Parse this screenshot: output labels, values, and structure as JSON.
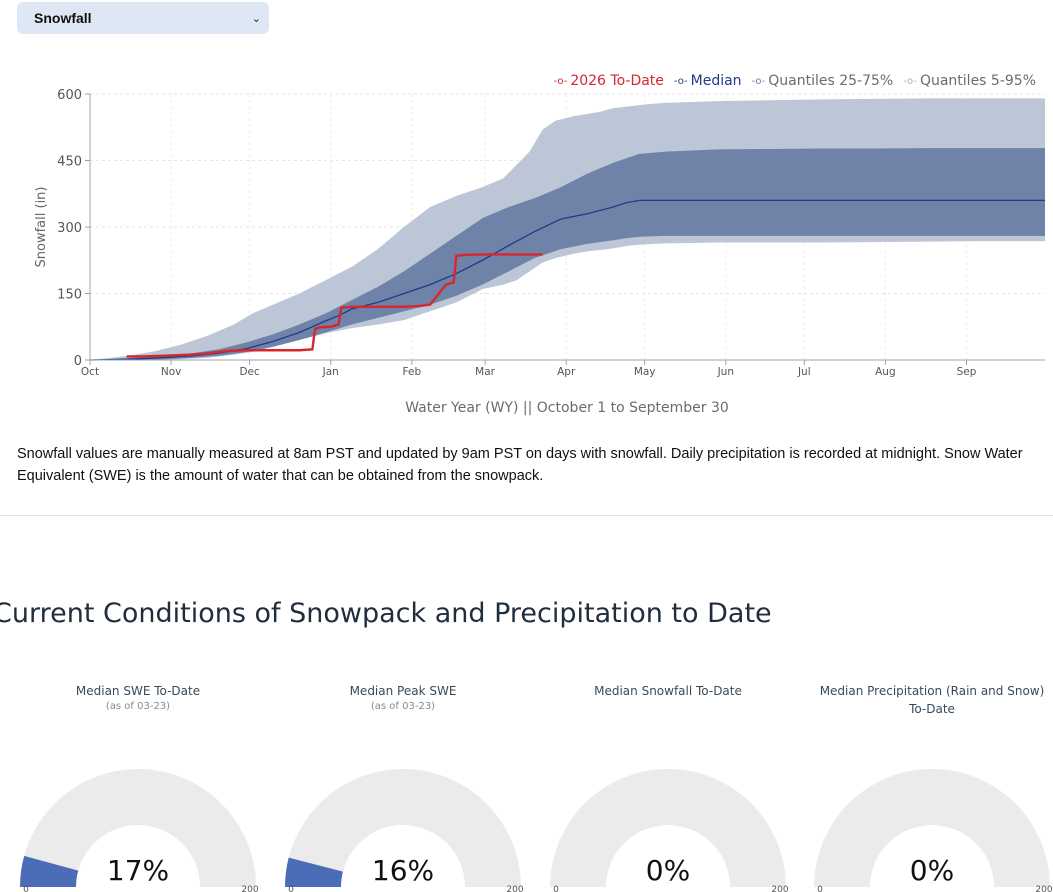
{
  "selector": {
    "value": "Snowfall",
    "icon": "chevron-down-icon"
  },
  "legend": [
    {
      "label": "2026 To-Date",
      "color": "#d7262c"
    },
    {
      "label": "Median",
      "color": "#1f3b8a"
    },
    {
      "label": "Quantiles 25-75%",
      "color": "#6b7fa3"
    },
    {
      "label": "Quantiles 5-95%",
      "color": "#a8b4c8"
    }
  ],
  "chart_data": {
    "type": "area",
    "title": "",
    "ylabel": "Snowfall (in)",
    "xlabel": "Water Year (WY) || October 1 to September 30",
    "ylim": [
      0,
      600
    ],
    "yticks": [
      0,
      150,
      300,
      450,
      600
    ],
    "x_unit": "day of water year",
    "x_range": [
      0,
      365
    ],
    "month_ticks": [
      {
        "label": "Oct",
        "day": 0
      },
      {
        "label": "Nov",
        "day": 31
      },
      {
        "label": "Dec",
        "day": 61
      },
      {
        "label": "Jan",
        "day": 92
      },
      {
        "label": "Feb",
        "day": 123
      },
      {
        "label": "Mar",
        "day": 151
      },
      {
        "label": "Apr",
        "day": 182
      },
      {
        "label": "May",
        "day": 212
      },
      {
        "label": "Jun",
        "day": 243
      },
      {
        "label": "Jul",
        "day": 273
      },
      {
        "label": "Aug",
        "day": 304
      },
      {
        "label": "Sep",
        "day": 335
      }
    ],
    "series": [
      {
        "name": "Quantiles 5-95%",
        "x": [
          0,
          8,
          15,
          25,
          35,
          45,
          55,
          62,
          70,
          80,
          90,
          100,
          110,
          120,
          130,
          140,
          145,
          150,
          158,
          163,
          168,
          173,
          178,
          185,
          190,
          195,
          198,
          200,
          203,
          206,
          210,
          215,
          220,
          230,
          240,
          260,
          280,
          300,
          320,
          340,
          365
        ],
        "upper": [
          0,
          5,
          10,
          20,
          35,
          55,
          80,
          105,
          125,
          150,
          180,
          210,
          250,
          300,
          345,
          370,
          380,
          390,
          410,
          440,
          470,
          520,
          540,
          550,
          555,
          560,
          565,
          568,
          570,
          572,
          575,
          578,
          580,
          582,
          584,
          586,
          588,
          589,
          590,
          590,
          590
        ],
        "lower": [
          0,
          0,
          0,
          0,
          2,
          5,
          12,
          18,
          30,
          45,
          60,
          72,
          80,
          90,
          110,
          130,
          145,
          160,
          170,
          180,
          200,
          220,
          230,
          240,
          245,
          248,
          250,
          252,
          255,
          258,
          260,
          262,
          263,
          264,
          265,
          265,
          265,
          266,
          267,
          268,
          268
        ]
      },
      {
        "name": "Quantiles 25-75%",
        "x": [
          0,
          10,
          20,
          30,
          40,
          50,
          60,
          70,
          80,
          90,
          100,
          110,
          120,
          130,
          140,
          150,
          160,
          170,
          180,
          190,
          200,
          205,
          210,
          220,
          240,
          260,
          280,
          300,
          320,
          340,
          365
        ],
        "upper": [
          0,
          3,
          6,
          10,
          16,
          25,
          40,
          58,
          80,
          105,
          135,
          165,
          200,
          240,
          280,
          320,
          345,
          365,
          390,
          420,
          445,
          455,
          465,
          470,
          475,
          476,
          477,
          477,
          478,
          478,
          478
        ],
        "lower": [
          0,
          0,
          0,
          2,
          5,
          10,
          18,
          30,
          45,
          62,
          80,
          95,
          110,
          125,
          145,
          170,
          200,
          230,
          250,
          262,
          270,
          275,
          278,
          280,
          280,
          280,
          280,
          280,
          280,
          280,
          280
        ]
      },
      {
        "name": "Median",
        "x": [
          0,
          10,
          20,
          30,
          40,
          50,
          60,
          70,
          80,
          90,
          95,
          100,
          110,
          120,
          130,
          140,
          150,
          160,
          170,
          180,
          190,
          200,
          205,
          210,
          220,
          240,
          260,
          280,
          300,
          320,
          340,
          365
        ],
        "y": [
          0,
          1,
          3,
          6,
          10,
          16,
          26,
          42,
          62,
          88,
          100,
          115,
          130,
          150,
          170,
          195,
          225,
          258,
          290,
          318,
          330,
          345,
          355,
          360,
          360,
          360,
          360,
          360,
          360,
          360,
          360,
          360
        ]
      },
      {
        "name": "2026 To-Date",
        "x": [
          14,
          20,
          30,
          38,
          45,
          52,
          58,
          65,
          72,
          80,
          85,
          86,
          88,
          92,
          95,
          96,
          100,
          110,
          120,
          126,
          130,
          136,
          139,
          140,
          143,
          150,
          158,
          166,
          173
        ],
        "y": [
          8,
          8,
          10,
          12,
          15,
          20,
          22,
          22,
          22,
          22,
          24,
          70,
          74,
          75,
          80,
          118,
          120,
          120,
          120,
          122,
          125,
          170,
          175,
          235,
          237,
          238,
          238,
          238,
          238
        ]
      }
    ]
  },
  "note": "Snowfall values are manually measured at 8am PST and updated by 9am PST on days with snowfall. Daily precipitation is recorded at midnight. Snow Water Equivalent (SWE) is the amount of water that can be obtained from the snowpack.",
  "section_title": "Current Conditions of Snowpack and Precipitation to Date",
  "gauges": [
    {
      "title": "Median SWE To-Date",
      "subtitle": "(as of 03-23)",
      "percent": 17,
      "label": "17%",
      "min": "0",
      "max": "200"
    },
    {
      "title": "Median Peak SWE",
      "subtitle": "(as of 03-23)",
      "percent": 16,
      "label": "16%",
      "min": "0",
      "max": "200"
    },
    {
      "title": "Median Snowfall To-Date",
      "subtitle": "",
      "percent": 0,
      "label": "0%",
      "min": "0",
      "max": "200"
    },
    {
      "title": "Median Precipitation (Rain and Snow) To-Date",
      "subtitle": "",
      "percent": 0,
      "label": "0%",
      "min": "0",
      "max": "200"
    }
  ],
  "gauge_colors": {
    "fill": "#4b6db8",
    "track": "#ebebeb"
  }
}
